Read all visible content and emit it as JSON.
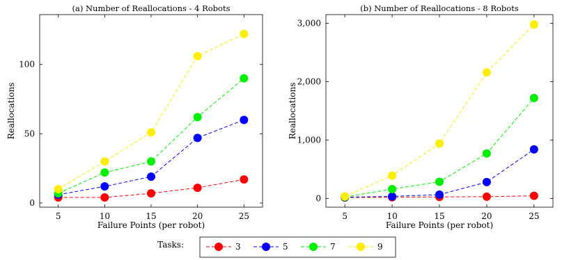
{
  "chart_data": [
    {
      "type": "line",
      "title": "(a) Number of Reallocations - 4 Robots",
      "xlabel": "Failure Points (per robot)",
      "ylabel": "Reallocations",
      "x": [
        5,
        10,
        15,
        20,
        25
      ],
      "xticks": [
        "5",
        "10",
        "15",
        "20",
        "25"
      ],
      "yticks": [
        0,
        50,
        100
      ],
      "ytick_labels": [
        "0",
        "50",
        "100"
      ],
      "xlim": [
        3,
        27
      ],
      "ylim": [
        -3,
        136
      ],
      "grid": false,
      "series": [
        {
          "name": "3",
          "color": "#ff0000",
          "values": [
            4,
            4,
            7,
            11,
            17
          ]
        },
        {
          "name": "5",
          "color": "#0000ff",
          "values": [
            6,
            12,
            19,
            47,
            60
          ]
        },
        {
          "name": "7",
          "color": "#00ee00",
          "values": [
            7,
            22,
            30,
            62,
            90
          ]
        },
        {
          "name": "9",
          "color": "#ffee00",
          "values": [
            10,
            30,
            51,
            106,
            122
          ]
        }
      ]
    },
    {
      "type": "line",
      "title": "(b) Number of Reallocations - 8 Robots",
      "xlabel": "Failure Points (per robot)",
      "ylabel": "Reallocations",
      "x": [
        5,
        10,
        15,
        20,
        25
      ],
      "xticks": [
        "5",
        "10",
        "15",
        "20",
        "25"
      ],
      "yticks": [
        0,
        1000,
        2000,
        3000
      ],
      "ytick_labels": [
        "0",
        "1,000",
        "2,000",
        "3,000"
      ],
      "xlim": [
        3,
        27
      ],
      "ylim": [
        -150,
        3150
      ],
      "grid": false,
      "series": [
        {
          "name": "3",
          "color": "#ff0000",
          "values": [
            15,
            20,
            25,
            30,
            45
          ]
        },
        {
          "name": "5",
          "color": "#0000ff",
          "values": [
            20,
            35,
            65,
            280,
            840
          ]
        },
        {
          "name": "7",
          "color": "#00ee00",
          "values": [
            25,
            160,
            285,
            770,
            1720
          ]
        },
        {
          "name": "9",
          "color": "#ffee00",
          "values": [
            35,
            390,
            940,
            2160,
            2980
          ]
        }
      ]
    }
  ],
  "legend": {
    "title": "Tasks:",
    "placement": "bottom-center",
    "entries": [
      "3",
      "5",
      "7",
      "9"
    ]
  }
}
